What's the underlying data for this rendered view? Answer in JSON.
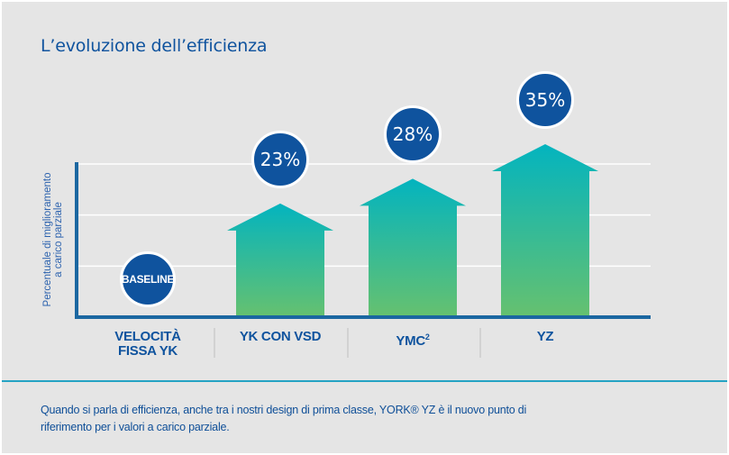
{
  "header": {
    "title": "L’evoluzione dell’efficienza"
  },
  "colors": {
    "background": "#e5e5e5",
    "brand_blue": "#0f539e",
    "axis_blue": "#1b67a1",
    "gradient_top": "#03b4bf",
    "gradient_bottom": "#66c16f",
    "gridline": "#ffffff",
    "rule": "#25a3c4"
  },
  "chart_data": {
    "type": "bar",
    "title": "L’evoluzione dell’efficienza",
    "ylabel": [
      "Percentuale di miglioramento",
      "a carico parziale"
    ],
    "xlabel": "",
    "ylim": [
      0,
      35
    ],
    "grid": true,
    "gridlines": 3,
    "categories": [
      {
        "main": "VELOCITÀ",
        "second": "FISSA YK",
        "sup": ""
      },
      {
        "main": "YK CON VSD",
        "second": "",
        "sup": ""
      },
      {
        "main": "YMC",
        "second": "",
        "sup": "2"
      },
      {
        "main": "YZ",
        "second": "",
        "sup": ""
      }
    ],
    "values": [
      0,
      23,
      28,
      35
    ],
    "labels": [
      "BASELINE",
      "23%",
      "28%",
      "35%"
    ],
    "mark_shape": "up-arrow"
  },
  "footer": {
    "caption_line1": "Quando si parla di efficienza, anche tra i nostri design di prima classe, YORK® YZ è il nuovo punto di",
    "caption_line2": "riferimento per i valori a carico parziale."
  }
}
